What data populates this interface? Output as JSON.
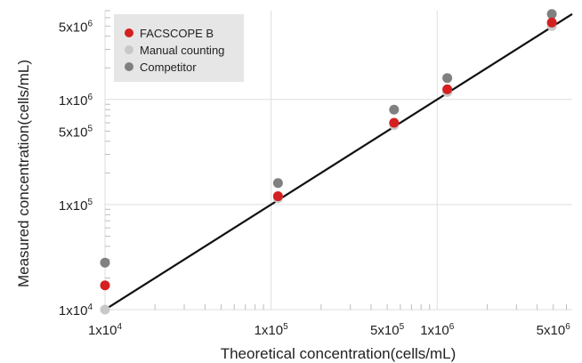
{
  "chart_data": {
    "type": "scatter",
    "xscale": "log",
    "yscale": "log",
    "xlim": [
      10000,
      6500000
    ],
    "ylim": [
      10000,
      7000000
    ],
    "xlabel": "Theoretical concentration(cells/mL)",
    "ylabel": "Measured concentration(cells/mL)",
    "x_ticks": [
      {
        "value": 10000,
        "mantissa": "1x10",
        "exponent": "4"
      },
      {
        "value": 100000,
        "mantissa": "1x10",
        "exponent": "5"
      },
      {
        "value": 500000,
        "mantissa": "5x10",
        "exponent": "5"
      },
      {
        "value": 1000000,
        "mantissa": "1x10",
        "exponent": "6"
      },
      {
        "value": 5000000,
        "mantissa": "5x10",
        "exponent": "6"
      }
    ],
    "y_ticks": [
      {
        "value": 10000,
        "mantissa": "1x10",
        "exponent": "4"
      },
      {
        "value": 100000,
        "mantissa": "1x10",
        "exponent": "5"
      },
      {
        "value": 500000,
        "mantissa": "5x10",
        "exponent": "5"
      },
      {
        "value": 1000000,
        "mantissa": "1x10",
        "exponent": "6"
      },
      {
        "value": 5000000,
        "mantissa": "5x10",
        "exponent": "6"
      }
    ],
    "grid": true,
    "legend_position": "top-left",
    "reference_line": {
      "x": [
        10000,
        6500000
      ],
      "y": [
        10000,
        6500000
      ],
      "color": "#111111"
    },
    "series": [
      {
        "name": "FACSCOPE B",
        "color": "#d42020",
        "points": [
          [
            10000,
            17000
          ],
          [
            110000,
            120000
          ],
          [
            550000,
            600000
          ],
          [
            1150000,
            1250000
          ],
          [
            4900000,
            5400000
          ]
        ]
      },
      {
        "name": "Manual counting",
        "color": "#c8c8c8",
        "points": [
          [
            10000,
            10000
          ],
          [
            110000,
            115000
          ],
          [
            550000,
            570000
          ],
          [
            1150000,
            1180000
          ],
          [
            4900000,
            5000000
          ]
        ]
      },
      {
        "name": "Competitor",
        "color": "#808080",
        "points": [
          [
            10000,
            28000
          ],
          [
            110000,
            160000
          ],
          [
            550000,
            800000
          ],
          [
            1150000,
            1600000
          ],
          [
            4900000,
            6500000
          ]
        ]
      }
    ]
  }
}
